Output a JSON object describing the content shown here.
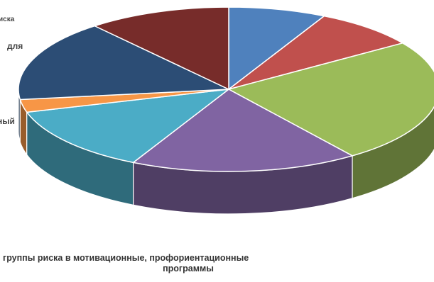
{
  "chart_data": {
    "type": "pie",
    "style": "3d",
    "start_angle_deg": 0,
    "direction": "clockwise",
    "legend": "none",
    "slices": [
      {
        "value": 7.5,
        "color": "#4f81bd"
      },
      {
        "value": 8.0,
        "color": "#c0504d"
      },
      {
        "value": 24.5,
        "color": "#9bbb59"
      },
      {
        "value": 17.5,
        "color": "#8064a2"
      },
      {
        "value": 13.0,
        "color": "#4bacc6"
      },
      {
        "value": 2.5,
        "color": "#f79646"
      },
      {
        "value": 16.0,
        "color": "#2c4d75"
      },
      {
        "value": 11.0,
        "color": "#772c2a"
      }
    ],
    "labels": [
      "иска",
      "для",
      "",
      "ный"
    ],
    "caption_lines": [
      "группы риска в мотивационные, профориентационные",
      "программы"
    ]
  }
}
